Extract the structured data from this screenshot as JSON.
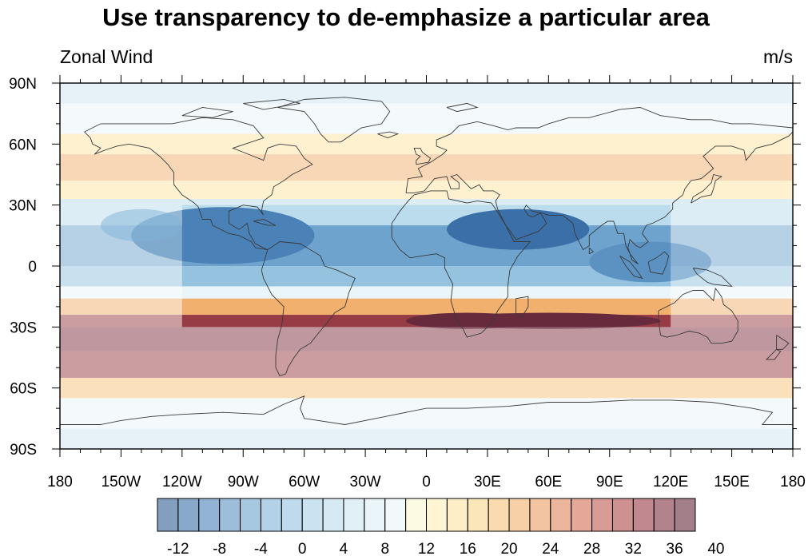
{
  "title": "Use transparency to de-emphasize a particular area",
  "left_string": "Zonal Wind",
  "right_string": "m/s",
  "map": {
    "projection": "cylindrical-equidistant",
    "lon_range": [
      -180,
      180
    ],
    "lat_range": [
      -90,
      90
    ],
    "lon_ticks": [
      {
        "value": -180,
        "label": "180"
      },
      {
        "value": -150,
        "label": "150W"
      },
      {
        "value": -120,
        "label": "120W"
      },
      {
        "value": -90,
        "label": "90W"
      },
      {
        "value": -60,
        "label": "60W"
      },
      {
        "value": -30,
        "label": "30W"
      },
      {
        "value": 0,
        "label": "0"
      },
      {
        "value": 30,
        "label": "30E"
      },
      {
        "value": 60,
        "label": "60E"
      },
      {
        "value": 90,
        "label": "90E"
      },
      {
        "value": 120,
        "label": "120E"
      },
      {
        "value": 150,
        "label": "150E"
      },
      {
        "value": 180,
        "label": "180"
      }
    ],
    "lat_ticks": [
      {
        "value": 90,
        "label": "90N"
      },
      {
        "value": 60,
        "label": "60N"
      },
      {
        "value": 30,
        "label": "30N"
      },
      {
        "value": 0,
        "label": "0"
      },
      {
        "value": -30,
        "label": "30S"
      },
      {
        "value": -60,
        "label": "60S"
      },
      {
        "value": -90,
        "label": "90S"
      }
    ],
    "opaque_region": {
      "lon": [
        -120,
        120
      ],
      "lat": [
        -30,
        30
      ]
    },
    "outside_opacity": 0.5,
    "zonal_wind_bands": [
      {
        "lat": [
          80,
          90
        ],
        "value": 3
      },
      {
        "lat": [
          65,
          80
        ],
        "value": 6
      },
      {
        "lat": [
          55,
          65
        ],
        "value": 12
      },
      {
        "lat": [
          42,
          55
        ],
        "value": 18
      },
      {
        "lat": [
          33,
          42
        ],
        "value": 12
      },
      {
        "lat": [
          20,
          33
        ],
        "value": 0
      },
      {
        "lat": [
          0,
          20
        ],
        "value": -8
      },
      {
        "lat": [
          -10,
          0
        ],
        "value": -4
      },
      {
        "lat": [
          -16,
          -10
        ],
        "value": 6
      },
      {
        "lat": [
          -24,
          -16
        ],
        "value": 18
      },
      {
        "lat": [
          -30,
          -24
        ],
        "value": 30
      },
      {
        "lat": [
          -42,
          -30
        ],
        "value": 32
      },
      {
        "lat": [
          -55,
          -42
        ],
        "value": 30
      },
      {
        "lat": [
          -65,
          -55
        ],
        "value": 16
      },
      {
        "lat": [
          -80,
          -65
        ],
        "value": 6
      },
      {
        "lat": [
          -90,
          -80
        ],
        "value": 2
      }
    ],
    "zonal_wind_features": [
      {
        "lon": -100,
        "lat": 15,
        "rlon": 45,
        "rlat": 14,
        "value": -12
      },
      {
        "lon": 45,
        "lat": 18,
        "rlon": 35,
        "rlat": 10,
        "value": -14
      },
      {
        "lon": 60,
        "lat": -27,
        "rlon": 55,
        "rlat": 4,
        "value": 40
      },
      {
        "lon": 20,
        "lat": -27,
        "rlon": 30,
        "rlat": 4,
        "value": 34
      },
      {
        "lon": 110,
        "lat": 2,
        "rlon": 30,
        "rlat": 10,
        "value": -10
      },
      {
        "lon": -140,
        "lat": 20,
        "rlon": 20,
        "rlat": 8,
        "value": -6
      }
    ]
  },
  "colorbar": {
    "labels": [
      "-12",
      "-8",
      "-4",
      "0",
      "4",
      "8",
      "12",
      "16",
      "20",
      "24",
      "28",
      "32",
      "36",
      "40"
    ],
    "colors": [
      "#2e5f95",
      "#3a6fa7",
      "#4a81b6",
      "#5b92c2",
      "#6da3cd",
      "#80b3d7",
      "#94c2df",
      "#a8d0e6",
      "#bbdcec",
      "#cde6f1",
      "#dceef5",
      "#e9f5f8",
      "#fbf6d2",
      "#fcefb8",
      "#fbe3a1",
      "#f8d58c",
      "#f5c37a",
      "#f1b06d",
      "#eb9c62",
      "#e0855a",
      "#d16e53",
      "#c0594e",
      "#ad4849",
      "#973b44",
      "#7f3040",
      "#662a3c"
    ]
  }
}
